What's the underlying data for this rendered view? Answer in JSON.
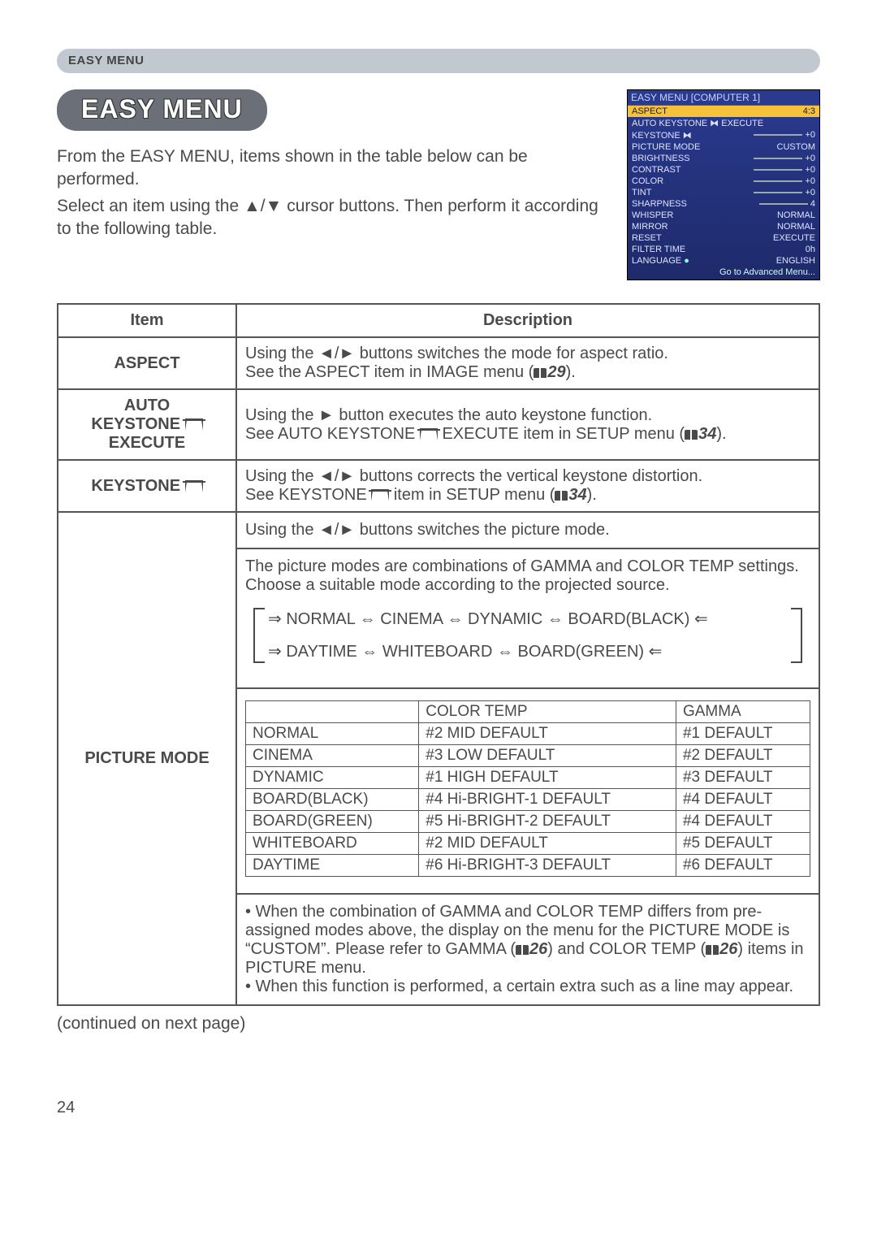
{
  "section_header": "EASY MENU",
  "title": "EASY MENU",
  "intro_p1": "From the EASY MENU, items shown in the table below can be performed.",
  "intro_p2": "Select an item using the ▲/▼ cursor buttons. Then perform it according to the following table.",
  "osd": {
    "title": "EASY MENU [COMPUTER 1]",
    "rows": [
      {
        "k": "ASPECT",
        "v": "4:3",
        "sel": true
      },
      {
        "k": "AUTO KEYSTONE ⧓ EXECUTE",
        "v": ""
      },
      {
        "k": "KEYSTONE ⧓",
        "v": "+0",
        "slider": true
      },
      {
        "k": "PICTURE MODE",
        "v": "CUSTOM"
      },
      {
        "k": "BRIGHTNESS",
        "v": "+0",
        "slider": true
      },
      {
        "k": "CONTRAST",
        "v": "+0",
        "slider": true
      },
      {
        "k": "COLOR",
        "v": "+0",
        "slider": true
      },
      {
        "k": "TINT",
        "v": "+0",
        "slider": true
      },
      {
        "k": "SHARPNESS",
        "v": "4",
        "slider": true
      },
      {
        "k": "WHISPER",
        "v": "NORMAL"
      },
      {
        "k": "MIRROR",
        "v": "NORMAL"
      },
      {
        "k": "RESET",
        "v": "EXECUTE"
      },
      {
        "k": "FILTER TIME",
        "v": "0h"
      },
      {
        "k": "LANGUAGE",
        "v": "ENGLISH",
        "globe": true
      }
    ],
    "footer": "Go to Advanced Menu..."
  },
  "table": {
    "headers": {
      "item": "Item",
      "desc": "Description"
    },
    "aspect": {
      "name": "ASPECT",
      "desc_a": "Using the ◄/► buttons switches the mode for aspect ratio.",
      "desc_b": "See the ASPECT item in IMAGE menu (",
      "ref": "29",
      "desc_c": ")."
    },
    "autokey": {
      "name_l1": "AUTO",
      "name_l2": "KEYSTONE ",
      "name_l3": "EXECUTE",
      "desc_a": "Using the ► button executes the auto keystone function.",
      "desc_b": "See AUTO KEYSTONE ",
      "desc_c": " EXECUTE item in SETUP menu (",
      "ref": "34",
      "desc_d": ")."
    },
    "keystone": {
      "name": "KEYSTONE ",
      "desc_a": "Using the ◄/► buttons corrects the vertical keystone distortion.",
      "desc_b": "See KEYSTONE ",
      "desc_c": " item in SETUP menu (",
      "ref": "34",
      "desc_d": ")."
    },
    "picmode": {
      "name": "PICTURE MODE",
      "intro_a": "Using the ◄/► buttons switches the picture mode.",
      "intro_b": "The picture modes are combinations of GAMMA and COLOR TEMP settings. Choose a suitable mode according to the projected source.",
      "chain_a": "⇒ NORMAL ⇔ CINEMA ⇔ DYNAMIC ⇔ BOARD(BLACK) ⇐",
      "chain_b": "⇒ DAYTIME ⇔ WHITEBOARD ⇔ BOARD(GREEN) ⇐",
      "inner_headers": [
        "",
        "COLOR TEMP",
        "GAMMA"
      ],
      "inner_rows": [
        [
          "NORMAL",
          "#2 MID DEFAULT",
          "#1 DEFAULT"
        ],
        [
          "CINEMA",
          "#3 LOW DEFAULT",
          "#2 DEFAULT"
        ],
        [
          "DYNAMIC",
          "#1 HIGH DEFAULT",
          "#3 DEFAULT"
        ],
        [
          "BOARD(BLACK)",
          "#4 Hi-BRIGHT-1 DEFAULT",
          "#4 DEFAULT"
        ],
        [
          "BOARD(GREEN)",
          "#5 Hi-BRIGHT-2 DEFAULT",
          "#4 DEFAULT"
        ],
        [
          "WHITEBOARD",
          "#2 MID DEFAULT",
          "#5 DEFAULT"
        ],
        [
          "DAYTIME",
          "#6 Hi-BRIGHT-3 DEFAULT",
          "#6 DEFAULT"
        ]
      ],
      "note_a": "• When the combination of GAMMA and COLOR TEMP differs from pre-assigned modes above, the display on the menu for the PICTURE MODE is “CUSTOM”. Please refer to GAMMA (",
      "ref1": "26",
      "note_b": ") and COLOR TEMP (",
      "ref2": "26",
      "note_c": ") items in PICTURE menu.",
      "note_d": "• When this function is performed, a certain extra such as a line may appear."
    }
  },
  "continued": "(continued on next page)",
  "page_number": "24"
}
